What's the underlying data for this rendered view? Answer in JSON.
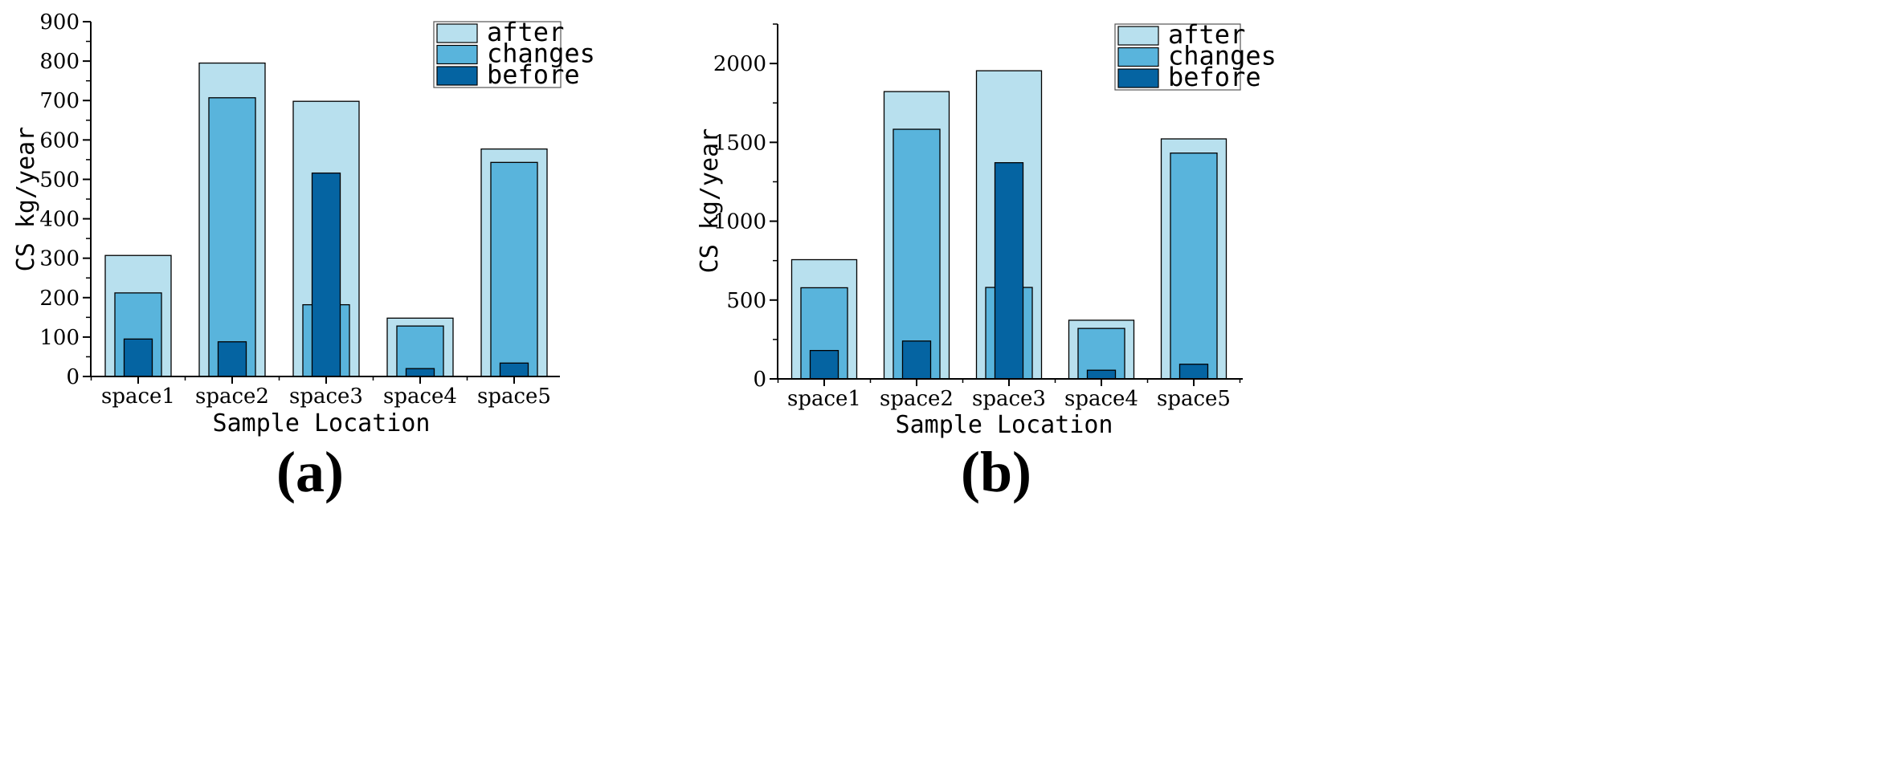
{
  "colors": {
    "after": "#b8e0ee",
    "changes": "#59b4dc",
    "before": "#0564a2",
    "stroke": "#000000"
  },
  "chart_data": [
    {
      "type": "bar",
      "panel_label": "(a)",
      "categories": [
        "space1",
        "space2",
        "space3",
        "space4",
        "space5"
      ],
      "series": [
        {
          "name": "after",
          "values": [
            307,
            795,
            698,
            148,
            577
          ]
        },
        {
          "name": "changes",
          "values": [
            212,
            707,
            182,
            128,
            543
          ]
        },
        {
          "name": "before",
          "values": [
            95,
            88,
            516,
            20,
            34
          ]
        }
      ],
      "xlabel": "Sample Location",
      "ylabel": "CS kg/year",
      "ylim": [
        0,
        900
      ],
      "yticks": [
        0,
        100,
        200,
        300,
        400,
        500,
        600,
        700,
        800,
        900
      ],
      "legend_position": "top-right",
      "grid": false
    },
    {
      "type": "bar",
      "panel_label": "(b)",
      "categories": [
        "space1",
        "space2",
        "space3",
        "space4",
        "space5"
      ],
      "series": [
        {
          "name": "after",
          "values": [
            756,
            1822,
            1954,
            372,
            1522
          ]
        },
        {
          "name": "changes",
          "values": [
            578,
            1583,
            580,
            320,
            1432
          ]
        },
        {
          "name": "before",
          "values": [
            180,
            240,
            1371,
            55,
            93
          ]
        }
      ],
      "xlabel": "Sample Location",
      "ylabel": "CS kg/year",
      "ylim": [
        0,
        2250
      ],
      "yticks": [
        0,
        500,
        1000,
        1500,
        2000
      ],
      "legend_position": "top-right",
      "grid": false
    }
  ]
}
